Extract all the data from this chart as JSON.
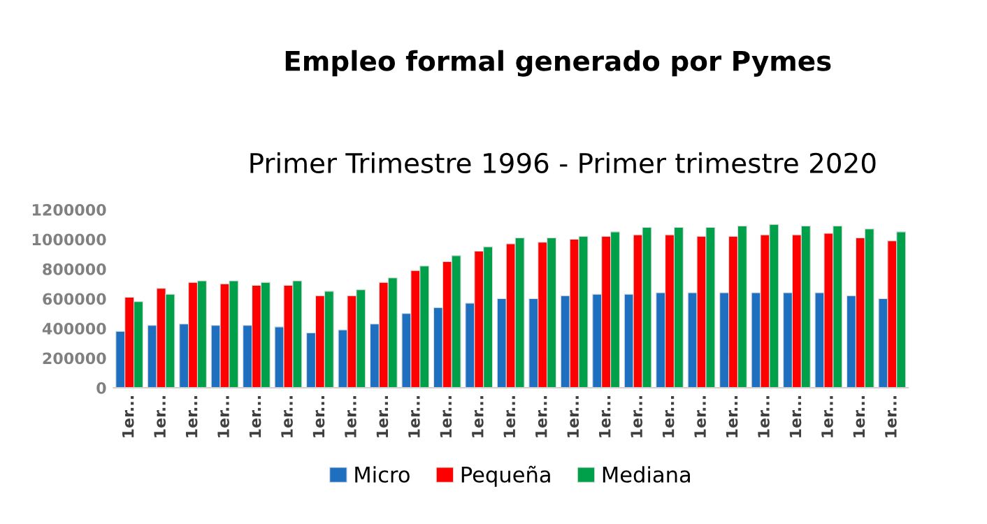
{
  "chart_data": {
    "type": "bar",
    "title": "Empleo formal generado por Pymes",
    "subtitle": "Primer Trimestre 1996 - Primer trimestre 2020",
    "categories": [
      "1er...",
      "1er...",
      "1er...",
      "1er...",
      "1er...",
      "1er...",
      "1er...",
      "1er...",
      "1er...",
      "1er...",
      "1er...",
      "1er...",
      "1er...",
      "1er...",
      "1er...",
      "1er...",
      "1er...",
      "1er...",
      "1er...",
      "1er...",
      "1er...",
      "1er...",
      "1er...",
      "1er...",
      "1er..."
    ],
    "series": [
      {
        "name": "Micro",
        "color": "#1f6fc0",
        "values": [
          380000,
          420000,
          430000,
          420000,
          420000,
          410000,
          370000,
          390000,
          430000,
          500000,
          540000,
          570000,
          600000,
          600000,
          620000,
          630000,
          630000,
          640000,
          640000,
          640000,
          640000,
          640000,
          640000,
          620000,
          600000
        ]
      },
      {
        "name": "Pequeña",
        "color": "#ff0000",
        "values": [
          610000,
          670000,
          710000,
          700000,
          690000,
          690000,
          620000,
          620000,
          710000,
          790000,
          850000,
          920000,
          970000,
          980000,
          1000000,
          1020000,
          1030000,
          1030000,
          1020000,
          1020000,
          1030000,
          1030000,
          1040000,
          1010000,
          990000
        ]
      },
      {
        "name": "Mediana",
        "color": "#00a04a",
        "values": [
          580000,
          630000,
          720000,
          720000,
          710000,
          720000,
          650000,
          660000,
          740000,
          820000,
          890000,
          950000,
          1010000,
          1010000,
          1020000,
          1050000,
          1080000,
          1080000,
          1080000,
          1090000,
          1100000,
          1090000,
          1090000,
          1070000,
          1050000
        ]
      }
    ],
    "ylim": [
      0,
      1200000
    ],
    "yticks": [
      0,
      200000,
      400000,
      600000,
      800000,
      1000000,
      1200000
    ],
    "grid": false,
    "legend": "bottom"
  }
}
